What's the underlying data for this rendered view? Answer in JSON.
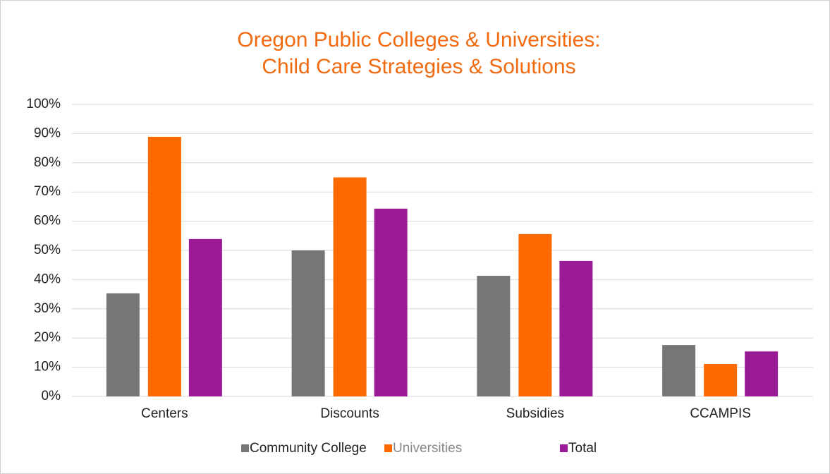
{
  "chart_data": {
    "type": "bar",
    "title": [
      "Oregon Public Colleges & Universities:",
      "Child Care Strategies & Solutions"
    ],
    "title_color": "#f26a10",
    "categories": [
      "Centers",
      "Discounts",
      "Subsidies",
      "CCAMPIS"
    ],
    "series": [
      {
        "name": "Community College",
        "color": "#767676",
        "values": [
          35.3,
          50,
          41.3,
          17.6
        ]
      },
      {
        "name": "Universities",
        "color": "#ff6a00",
        "values": [
          88.9,
          75,
          55.6,
          11.1
        ]
      },
      {
        "name": "Total",
        "color": "#9b1b96",
        "values": [
          53.9,
          64.3,
          46.4,
          15.4
        ]
      }
    ],
    "ylim": [
      0,
      100
    ],
    "yticks": [
      {
        "value": 0,
        "label": "0%"
      },
      {
        "value": 10,
        "label": "10%"
      },
      {
        "value": 20,
        "label": "20%"
      },
      {
        "value": 30,
        "label": "30%"
      },
      {
        "value": 40,
        "label": "40%"
      },
      {
        "value": 50,
        "label": "50%"
      },
      {
        "value": 60,
        "label": "60%"
      },
      {
        "value": 70,
        "label": "70%"
      },
      {
        "value": 80,
        "label": "80%"
      },
      {
        "value": 90,
        "label": "90%"
      },
      {
        "value": 100,
        "label": "100%"
      }
    ],
    "grid": true,
    "legend": "bottom"
  }
}
